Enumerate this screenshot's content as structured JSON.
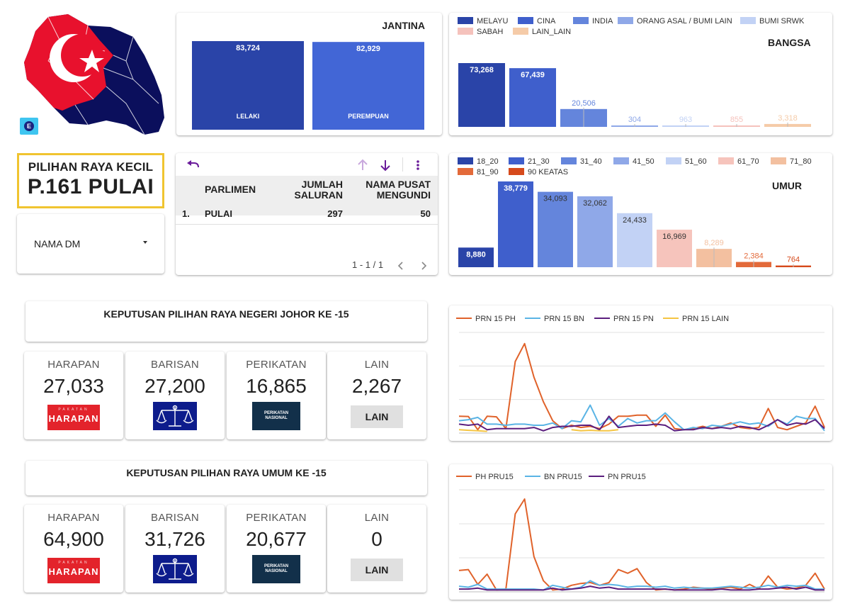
{
  "badge_letter": "E",
  "title": {
    "small": "PILIHAN RAYA KECIL",
    "big": "P.161 PULAI"
  },
  "filter": {
    "label": "NAMA DM"
  },
  "jantina": {
    "title": "JANTINA",
    "chart_data": {
      "type": "bar",
      "categories": [
        "LELAKI",
        "PEREMPUAN"
      ],
      "values": [
        83724,
        82929
      ],
      "value_labels": [
        "83,724",
        "82,929"
      ],
      "colors": [
        "#2a44a8",
        "#4266d6"
      ]
    }
  },
  "bangsa": {
    "title": "BANGSA",
    "chart_data": {
      "type": "bar",
      "categories": [
        "MELAYU",
        "CINA",
        "INDIA",
        "ORANG ASAL / BUMI LAIN",
        "BUMI SRWK",
        "SABAH",
        "LAIN_LAIN"
      ],
      "values": [
        73268,
        67439,
        20506,
        304,
        963,
        855,
        3318
      ],
      "value_labels": [
        "73,268",
        "67,439",
        "20,506",
        "304",
        "963",
        "855",
        "3,318"
      ],
      "colors": [
        "#2a44a8",
        "#3f5fcc",
        "#6485dc",
        "#8fa8e8",
        "#c2d2f5",
        "#f5c2bc",
        "#f5cba8"
      ]
    }
  },
  "umur": {
    "title": "UMUR",
    "chart_data": {
      "type": "bar",
      "categories": [
        "18_20",
        "21_30",
        "31_40",
        "41_50",
        "51_60",
        "61_70",
        "71_80",
        "81_90",
        "90 KEATAS"
      ],
      "values": [
        8880,
        38779,
        34093,
        32062,
        24433,
        16969,
        8289,
        2384,
        764
      ],
      "value_labels": [
        "8,880",
        "38,779",
        "34,093",
        "32,062",
        "24,433",
        "16,969",
        "8,289",
        "2,384",
        "764"
      ],
      "colors": [
        "#2a44a8",
        "#3f5fcc",
        "#6485dc",
        "#8fa8e8",
        "#c2d2f5",
        "#f6c4bc",
        "#f3c0a0",
        "#e36a3a",
        "#d64a1c"
      ]
    }
  },
  "table": {
    "headers": [
      "PARLIMEN",
      "JUMLAH SALURAN",
      "NAMA PUSAT MENGUNDI"
    ],
    "header_lines": [
      [
        "PARLIMEN"
      ],
      [
        "JUMLAH",
        "SALURAN"
      ],
      [
        "NAMA PUSAT",
        "MENGUNDI"
      ]
    ],
    "rows": [
      {
        "index": "1.",
        "parlimen": "PULAI",
        "saluran": "297",
        "pusat": "50"
      }
    ],
    "pager": "1 - 1 / 1"
  },
  "prn": {
    "heading": "KEPUTUSAN PILIHAN RAYA NEGERI JOHOR KE -15",
    "parties": [
      {
        "name": "HARAPAN",
        "value": "27,033",
        "logo": "harapan-logo"
      },
      {
        "name": "BARISAN",
        "value": "27,200",
        "logo": "barisan-logo"
      },
      {
        "name": "PERIKATAN",
        "value": "16,865",
        "logo": "perikatan-logo"
      },
      {
        "name": "LAIN",
        "value": "2,267",
        "logo_text": "LAIN"
      }
    ]
  },
  "pru": {
    "heading": "KEPUTUSAN PILIHAN RAYA UMUM  KE -15",
    "parties": [
      {
        "name": "HARAPAN",
        "value": "64,900",
        "logo": "harapan-logo"
      },
      {
        "name": "BARISAN",
        "value": "31,726",
        "logo": "barisan-logo"
      },
      {
        "name": "PERIKATAN",
        "value": "20,677",
        "logo": "perikatan-logo"
      },
      {
        "name": "LAIN",
        "value": "0",
        "logo_text": "LAIN"
      }
    ]
  },
  "logo_text": {
    "harapan_small": "PAKATAN",
    "harapan_big": "HARAPAN",
    "perikatan_top": "PERIKATAN",
    "perikatan_bottom": "NASIONAL"
  },
  "line_prn": {
    "chart_data": {
      "type": "line",
      "series": [
        {
          "name": "PRN 15 PH",
          "color": "#e0622a",
          "values": [
            1500,
            1480,
            300,
            1500,
            1450,
            400,
            6400,
            8000,
            5000,
            2800,
            1100,
            400,
            700,
            500,
            600,
            400,
            800,
            1500,
            1500,
            1600,
            1600,
            600,
            1600,
            400,
            300,
            400,
            600,
            400,
            600,
            900,
            500,
            400,
            500,
            2200,
            500,
            300,
            600,
            900,
            2400,
            500
          ]
        },
        {
          "name": "PRN 15 BN",
          "color": "#5ab4e5",
          "values": [
            1100,
            1200,
            1400,
            800,
            800,
            700,
            800,
            800,
            700,
            700,
            900,
            400,
            1100,
            1000,
            2500,
            700,
            1300,
            600,
            1300,
            900,
            1100,
            1100,
            1800,
            1000,
            300,
            500,
            400,
            700,
            600,
            800,
            1000,
            800,
            900,
            600,
            1200,
            800,
            1500,
            1300,
            1300,
            200
          ]
        },
        {
          "name": "PRN 15 PN",
          "color": "#5b1e7e",
          "values": [
            800,
            700,
            800,
            300,
            400,
            400,
            400,
            400,
            500,
            200,
            500,
            600,
            600,
            700,
            700,
            300,
            1500,
            500,
            600,
            700,
            700,
            800,
            700,
            200,
            300,
            300,
            500,
            400,
            500,
            400,
            600,
            500,
            300,
            700,
            1200,
            700,
            900,
            800,
            1200,
            400
          ]
        },
        {
          "name": "PRN 15 LAIN",
          "color": "#f5c542",
          "values": [
            300,
            250,
            200,
            150,
            null,
            null,
            null,
            null,
            null,
            null,
            null,
            null,
            300,
            200,
            250,
            200,
            200,
            300,
            null,
            null,
            null,
            null,
            null,
            null,
            null,
            null,
            null,
            null,
            null,
            null,
            null,
            null,
            null,
            null,
            null,
            null,
            null,
            null,
            null,
            100
          ]
        }
      ]
    }
  },
  "line_pru": {
    "chart_data": {
      "type": "line",
      "series": [
        {
          "name": "PH PRU15",
          "color": "#e0622a",
          "values": [
            2300,
            2400,
            800,
            1900,
            200,
            300,
            8400,
            10000,
            3800,
            1200,
            200,
            300,
            700,
            900,
            1000,
            700,
            1000,
            2400,
            2000,
            2500,
            1000,
            200,
            300,
            200,
            300,
            500,
            400,
            300,
            400,
            500,
            300,
            800,
            300,
            1700,
            500,
            300,
            400,
            700,
            2000,
            300
          ]
        },
        {
          "name": "BN PRU15",
          "color": "#5ab4e5",
          "values": [
            600,
            500,
            800,
            300,
            300,
            300,
            300,
            300,
            300,
            200,
            700,
            500,
            300,
            500,
            1200,
            700,
            800,
            700,
            500,
            600,
            600,
            500,
            600,
            400,
            500,
            400,
            400,
            400,
            500,
            600,
            500,
            400,
            500,
            700,
            500,
            700,
            600,
            700,
            300,
            300
          ]
        },
        {
          "name": "PN PRU15",
          "color": "#5b1e7e",
          "values": [
            300,
            300,
            400,
            200,
            200,
            200,
            200,
            200,
            200,
            200,
            400,
            200,
            300,
            400,
            600,
            400,
            500,
            300,
            300,
            300,
            300,
            300,
            300,
            200,
            200,
            200,
            200,
            200,
            300,
            200,
            200,
            200,
            300,
            300,
            400,
            500,
            300,
            500,
            200,
            200
          ]
        }
      ]
    }
  }
}
